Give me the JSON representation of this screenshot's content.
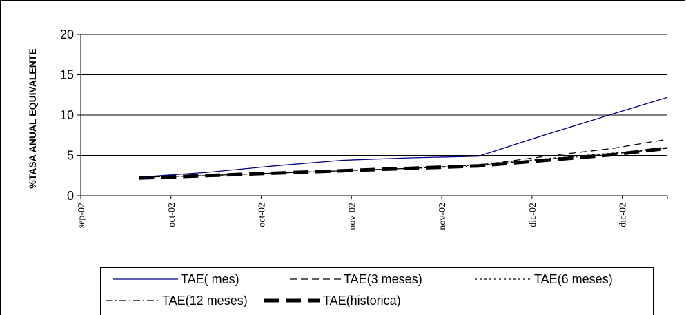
{
  "chart_data": {
    "type": "line",
    "title": "",
    "xlabel": "",
    "ylabel": "%TASA ANUAL EQUIVALENTE",
    "ylim": [
      0,
      20
    ],
    "yticks": [
      0,
      5,
      10,
      15,
      20
    ],
    "grid": true,
    "legend_position": "bottom",
    "x_tick_labels": [
      "sep-02",
      "oct-02",
      "oct-02",
      "nov-02",
      "nov-02",
      "dic-02",
      "dic-02"
    ],
    "x": [
      "2002-09-13",
      "2002-09-27",
      "2002-10-11",
      "2002-10-25",
      "2002-11-08",
      "2002-11-22",
      "2002-12-06",
      "2002-12-20",
      "2002-12-31"
    ],
    "series": [
      {
        "name": "TAE( mes)",
        "color": "#000080",
        "dash": "solid",
        "values": [
          2.3,
          2.9,
          3.7,
          4.4,
          4.7,
          4.9,
          7.6,
          10.2,
          12.2
        ]
      },
      {
        "name": "TAE(3 meses)",
        "color": "#000000",
        "dash": "dashed",
        "values": [
          2.3,
          2.5,
          2.8,
          3.1,
          3.4,
          3.8,
          4.9,
          5.9,
          7.0
        ]
      },
      {
        "name": "TAE(6 meses)",
        "color": "#000000",
        "dash": "dotted",
        "values": [
          2.3,
          2.5,
          2.8,
          3.1,
          3.4,
          3.8,
          4.6,
          5.3,
          6.0
        ]
      },
      {
        "name": "TAE(12 meses)",
        "color": "#000000",
        "dash": "dashdot",
        "values": [
          2.3,
          2.5,
          2.8,
          3.1,
          3.4,
          3.7,
          4.5,
          5.2,
          5.9
        ]
      },
      {
        "name": "TAE(historica)",
        "color": "#000000",
        "dash": "thick-dashed",
        "values": [
          2.2,
          2.5,
          2.8,
          3.1,
          3.4,
          3.7,
          4.4,
          5.1,
          5.9
        ]
      }
    ]
  }
}
